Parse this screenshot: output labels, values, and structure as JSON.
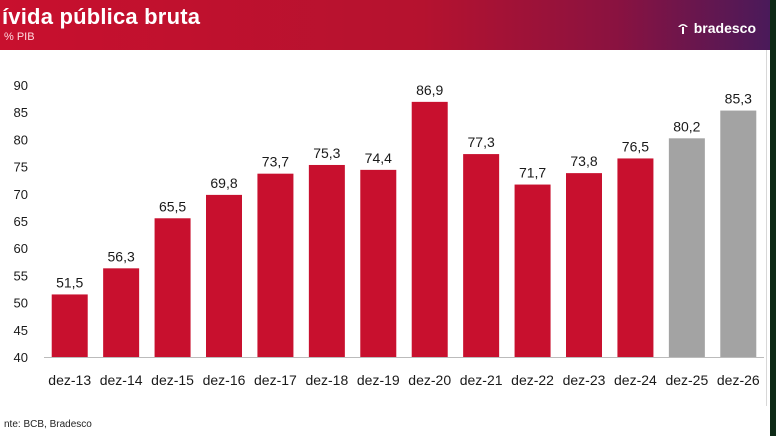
{
  "header": {
    "title": "ívida pública bruta",
    "subtitle": "% PIB",
    "brand": "bradesco"
  },
  "footer": {
    "source": "nte: BCB, Bradesco"
  },
  "colors": {
    "actual": "#c8102e",
    "projection": "#a3a3a3"
  },
  "chart_data": {
    "type": "bar",
    "title": "ívida pública bruta",
    "subtitle": "% PIB",
    "categories": [
      "dez-13",
      "dez-14",
      "dez-15",
      "dez-16",
      "dez-17",
      "dez-18",
      "dez-19",
      "dez-20",
      "dez-21",
      "dez-22",
      "dez-23",
      "dez-24",
      "dez-25",
      "dez-26"
    ],
    "values": [
      51.5,
      56.3,
      65.5,
      69.8,
      73.7,
      75.3,
      74.4,
      86.9,
      77.3,
      71.7,
      73.8,
      76.5,
      80.2,
      85.3
    ],
    "value_labels": [
      "51,5",
      "56,3",
      "65,5",
      "69,8",
      "73,7",
      "75,3",
      "74,4",
      "86,9",
      "77,3",
      "71,7",
      "73,8",
      "76,5",
      "80,2",
      "85,3"
    ],
    "bar_colors": [
      "#c8102e",
      "#c8102e",
      "#c8102e",
      "#c8102e",
      "#c8102e",
      "#c8102e",
      "#c8102e",
      "#c8102e",
      "#c8102e",
      "#c8102e",
      "#c8102e",
      "#c8102e",
      "#a3a3a3",
      "#a3a3a3"
    ],
    "yticks": [
      40,
      45,
      50,
      55,
      60,
      65,
      70,
      75,
      80,
      85,
      90
    ],
    "ylim": [
      40,
      90
    ],
    "xlabel": "",
    "ylabel": "",
    "grid": false,
    "legend": "none"
  }
}
